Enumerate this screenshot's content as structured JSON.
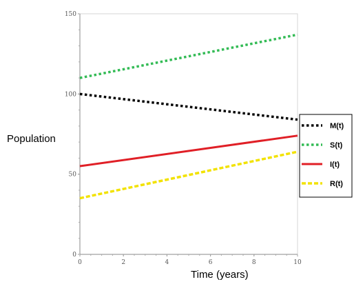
{
  "chart_data": {
    "type": "line",
    "ylabel": "Population",
    "xlabel": "Time (years)",
    "xlim": [
      0,
      10
    ],
    "ylim": [
      0,
      150
    ],
    "x_ticks": [
      "0",
      "2",
      "4",
      "6",
      "8",
      "10"
    ],
    "y_ticks": [
      "0",
      "50",
      "100",
      "150"
    ],
    "grid": false,
    "legend_position": "right",
    "series": [
      {
        "name": "M(t)",
        "x": [
          0,
          10
        ],
        "values": [
          100,
          84
        ],
        "color": "#000000",
        "style": "dotted"
      },
      {
        "name": "S(t)",
        "x": [
          0,
          10
        ],
        "values": [
          110,
          137
        ],
        "color": "#33bb55",
        "style": "dotted"
      },
      {
        "name": "I(t)",
        "x": [
          0,
          10
        ],
        "values": [
          55,
          74
        ],
        "color": "#e01f26",
        "style": "solid"
      },
      {
        "name": "R(t)",
        "x": [
          0,
          10
        ],
        "values": [
          35,
          64
        ],
        "color": "#f2e200",
        "style": "dashed"
      }
    ]
  }
}
